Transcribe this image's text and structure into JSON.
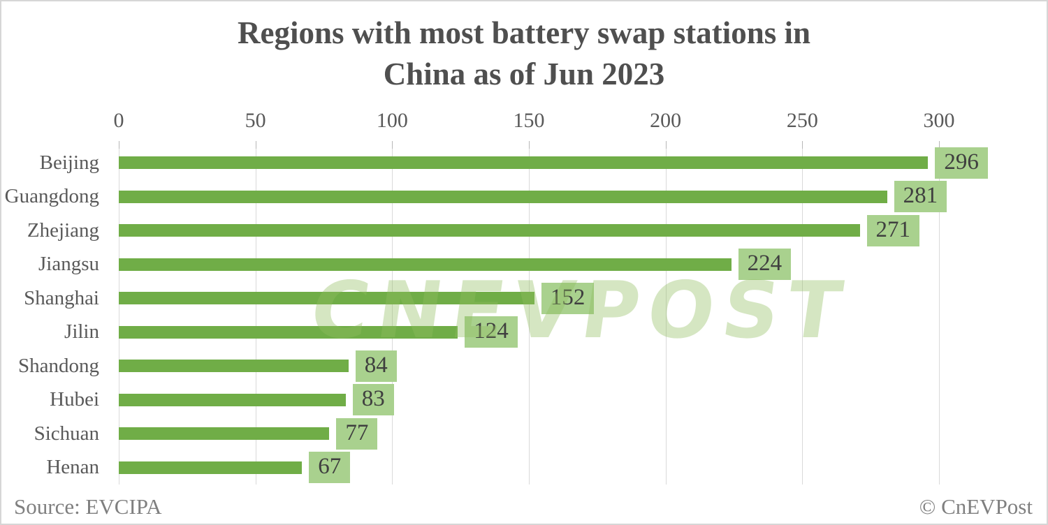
{
  "title": {
    "line1": "Regions with most battery swap stations in",
    "line2": "China as of Jun 2023"
  },
  "chart_data": {
    "type": "bar",
    "orientation": "horizontal",
    "title": "Regions with most battery swap stations in China as of Jun 2023",
    "categories": [
      "Beijing",
      "Guangdong",
      "Zhejiang",
      "Jiangsu",
      "Shanghai",
      "Jilin",
      "Shandong",
      "Hubei",
      "Sichuan",
      "Henan"
    ],
    "values": [
      296,
      281,
      271,
      224,
      152,
      124,
      84,
      83,
      77,
      67
    ],
    "xlabel": "",
    "ylabel": "",
    "xlim": [
      0,
      300
    ],
    "x_ticks": [
      0,
      50,
      100,
      150,
      200,
      250,
      300
    ],
    "axis_position": "top",
    "grid": "vertical-on",
    "data_labels": "on",
    "legend": "none"
  },
  "colors": {
    "bar": "#70AD47",
    "value_label_bg": "#A9D18E",
    "value_label_text": "#3f3f3f",
    "gridline": "#d9d9d9",
    "axis_text": "#595959",
    "title_text": "#4f4f4f",
    "footer_text": "#7f7f7f"
  },
  "watermark": {
    "text": "CNEVPOST"
  },
  "footer": {
    "source": "Source: EVCIPA",
    "copyright": "© CnEVPost"
  }
}
